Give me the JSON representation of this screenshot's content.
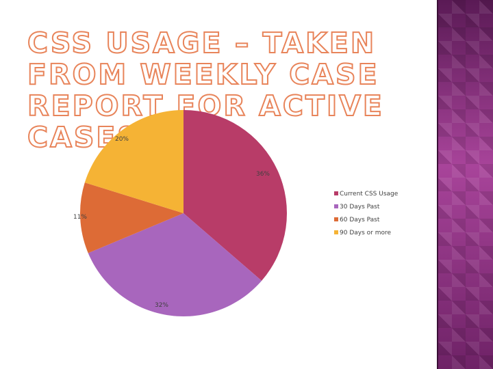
{
  "slide": {
    "title": "CSS USAGE – TAKEN FROM WEEKLY CASE REPORT FOR ACTIVE CASES"
  },
  "colors": {
    "title_outline": "#e8845a",
    "panel_base": "#9c3a8e"
  },
  "chart_data": {
    "type": "pie",
    "title": "",
    "categories": [
      "Current CSS Usage",
      "30 Days Past",
      "60 Days Past",
      "90 Days or more"
    ],
    "values": [
      36,
      32,
      11,
      20
    ],
    "labels": [
      "36%",
      "32%",
      "11%",
      "20%"
    ],
    "colors": [
      "#b83c68",
      "#a866bd",
      "#dd6b36",
      "#f5b335"
    ],
    "start_angle_deg": 0,
    "direction": "clockwise",
    "legend_position": "right"
  }
}
